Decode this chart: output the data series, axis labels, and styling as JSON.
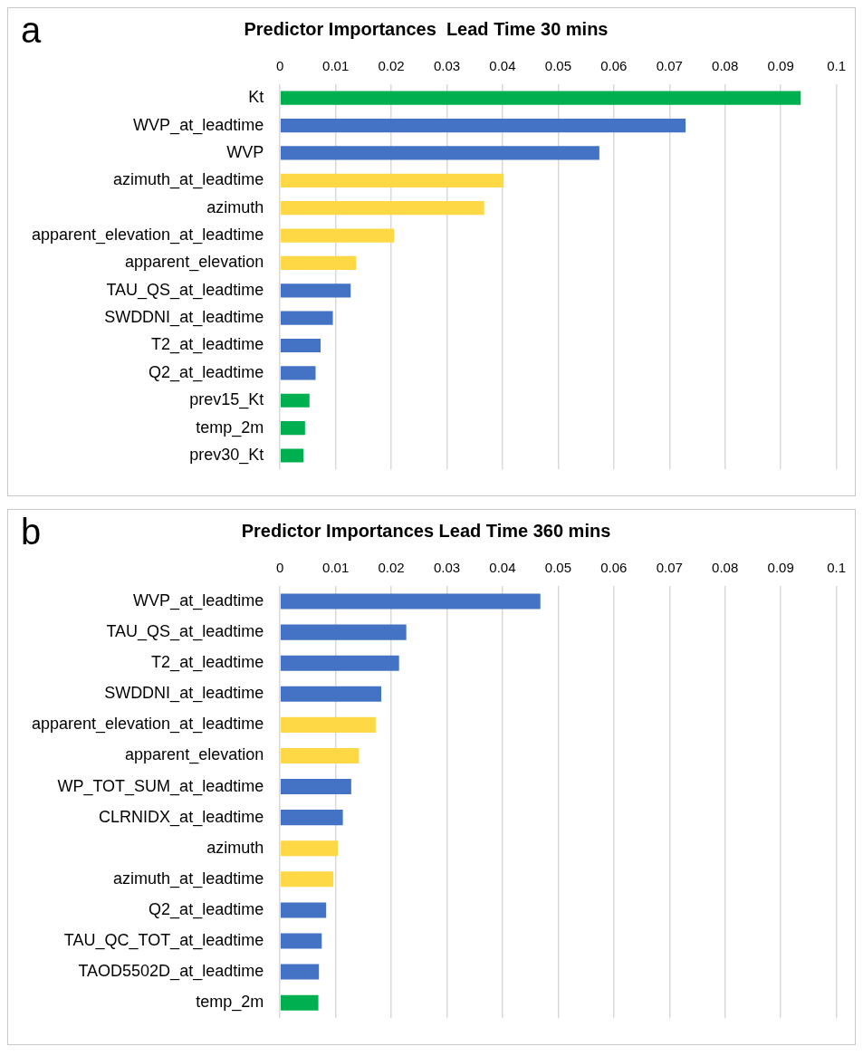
{
  "chart_data": [
    {
      "type": "bar",
      "orientation": "horizontal",
      "title": "Predictor Importances  Lead Time 30 mins",
      "annotations": [
        "a"
      ],
      "categories": [
        "Kt",
        "WVP_at_leadtime",
        "WVP",
        "azimuth_at_leadtime",
        "azimuth",
        "apparent_elevation_at_leadtime",
        "apparent_elevation",
        "TAU_QS_at_leadtime",
        "SWDDNI_at_leadtime",
        "T2_at_leadtime",
        "Q2_at_leadtime",
        "prev15_Kt",
        "temp_2m",
        "prev30_Kt"
      ],
      "values": [
        0.0936,
        0.0729,
        0.0574,
        0.0402,
        0.0367,
        0.0205,
        0.0137,
        0.0127,
        0.0095,
        0.0073,
        0.0064,
        0.0053,
        0.0045,
        0.0042
      ],
      "colors": [
        "#00b050",
        "#4472c4",
        "#4472c4",
        "#ffd845",
        "#ffd845",
        "#ffd845",
        "#ffd845",
        "#4472c4",
        "#4472c4",
        "#4472c4",
        "#4472c4",
        "#00b050",
        "#00b050",
        "#00b050"
      ],
      "xlim": [
        0,
        0.1
      ],
      "xticks": [
        0,
        0.01,
        0.02,
        0.03,
        0.04,
        0.05,
        0.06,
        0.07,
        0.08,
        0.09,
        0.1
      ],
      "grid": "x",
      "legend": false
    },
    {
      "type": "bar",
      "orientation": "horizontal",
      "title": "Predictor Importances Lead Time 360 mins",
      "annotations": [
        "b"
      ],
      "categories": [
        "WVP_at_leadtime",
        "TAU_QS_at_leadtime",
        "T2_at_leadtime",
        "SWDDNI_at_leadtime",
        "apparent_elevation_at_leadtime",
        "apparent_elevation",
        "WP_TOT_SUM_at_leadtime",
        "CLRNIDX_at_leadtime",
        "azimuth",
        "azimuth_at_leadtime",
        "Q2_at_leadtime",
        "TAU_QC_TOT_at_leadtime",
        "TAOD5502D_at_leadtime",
        "temp_2m"
      ],
      "values": [
        0.0468,
        0.0227,
        0.0214,
        0.0182,
        0.0172,
        0.0142,
        0.0128,
        0.0113,
        0.0104,
        0.0096,
        0.0083,
        0.0075,
        0.007,
        0.0069
      ],
      "colors": [
        "#4472c4",
        "#4472c4",
        "#4472c4",
        "#4472c4",
        "#ffd845",
        "#ffd845",
        "#4472c4",
        "#4472c4",
        "#ffd845",
        "#ffd845",
        "#4472c4",
        "#4472c4",
        "#4472c4",
        "#00b050"
      ],
      "xlim": [
        0,
        0.1
      ],
      "xticks": [
        0,
        0.01,
        0.02,
        0.03,
        0.04,
        0.05,
        0.06,
        0.07,
        0.08,
        0.09,
        0.1
      ],
      "grid": "x",
      "legend": false
    }
  ]
}
